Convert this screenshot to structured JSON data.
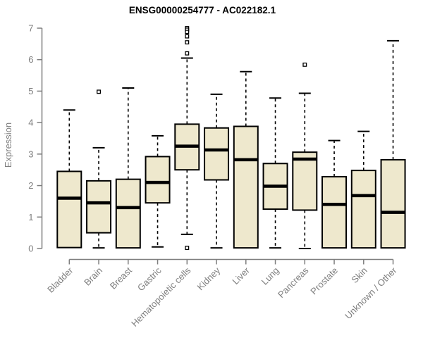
{
  "chart_data": {
    "type": "boxplot",
    "title": "ENSG00000254777 - AC022182.1",
    "ylabel": "Expression",
    "xlabel": "",
    "ylim": [
      0,
      7
    ],
    "yticks": [
      0,
      1,
      2,
      3,
      4,
      5,
      6,
      7
    ],
    "grid": false,
    "legend": "none",
    "categories": [
      "Bladder",
      "Brain",
      "Breast",
      "Gastric",
      "Hematopoietic cells",
      "Kidney",
      "Liver",
      "Lung",
      "Pancreas",
      "Prostate",
      "Skin",
      "Unknown / Other"
    ],
    "boxes": [
      {
        "label": "Bladder",
        "whisker_low": 0.03,
        "q1": 0.03,
        "median": 1.6,
        "q3": 2.45,
        "whisker_high": 4.4,
        "outliers": []
      },
      {
        "label": "Brain",
        "whisker_low": 0.02,
        "q1": 0.5,
        "median": 1.45,
        "q3": 2.15,
        "whisker_high": 3.2,
        "outliers": [
          4.98
        ]
      },
      {
        "label": "Breast",
        "whisker_low": 0.02,
        "q1": 0.02,
        "median": 1.3,
        "q3": 2.2,
        "whisker_high": 5.1,
        "outliers": []
      },
      {
        "label": "Gastric",
        "whisker_low": 0.05,
        "q1": 1.45,
        "median": 2.1,
        "q3": 2.92,
        "whisker_high": 3.58,
        "outliers": []
      },
      {
        "label": "Hematopoietic cells",
        "whisker_low": 0.45,
        "q1": 2.5,
        "median": 3.25,
        "q3": 3.95,
        "whisker_high": 6.05,
        "outliers": [
          7.0,
          6.95,
          6.88,
          6.74,
          6.55,
          6.2,
          0.02
        ]
      },
      {
        "label": "Kidney",
        "whisker_low": 0.02,
        "q1": 2.18,
        "median": 3.13,
        "q3": 3.83,
        "whisker_high": 4.9,
        "outliers": []
      },
      {
        "label": "Liver",
        "whisker_low": 0.02,
        "q1": 0.02,
        "median": 2.82,
        "q3": 3.88,
        "whisker_high": 5.62,
        "outliers": []
      },
      {
        "label": "Lung",
        "whisker_low": 0.02,
        "q1": 1.25,
        "median": 1.98,
        "q3": 2.7,
        "whisker_high": 4.78,
        "outliers": []
      },
      {
        "label": "Pancreas",
        "whisker_low": 0.0,
        "q1": 1.22,
        "median": 2.84,
        "q3": 3.06,
        "whisker_high": 4.93,
        "outliers": [
          5.84
        ]
      },
      {
        "label": "Prostate",
        "whisker_low": 0.02,
        "q1": 0.02,
        "median": 1.4,
        "q3": 2.28,
        "whisker_high": 3.43,
        "outliers": []
      },
      {
        "label": "Skin",
        "whisker_low": 0.02,
        "q1": 0.02,
        "median": 1.68,
        "q3": 2.48,
        "whisker_high": 3.72,
        "outliers": []
      },
      {
        "label": "Unknown / Other",
        "whisker_low": 0.02,
        "q1": 0.02,
        "median": 1.15,
        "q3": 2.82,
        "whisker_high": 6.6,
        "outliers": []
      }
    ],
    "colors": {
      "box_fill": "#EEE8CD",
      "box_border": "#000000",
      "median": "#000000",
      "whisker": "#000000",
      "outlier_stroke": "#000000",
      "outlier_fill": "#FFFFFF",
      "axis": "#7E7E7E",
      "tick_text": "#7E7E7E",
      "title_text": "#000000",
      "background": "#FFFFFF"
    }
  }
}
